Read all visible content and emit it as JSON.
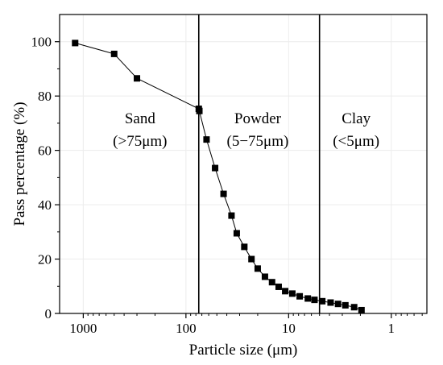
{
  "chart_data": {
    "type": "scatter",
    "xscale": "log",
    "x_reversed": true,
    "xlabel": "Particle size (μm)",
    "ylabel": "Pass percentage (%)",
    "xlim": [
      1700,
      0.45
    ],
    "ylim": [
      0,
      110
    ],
    "x_ticks": [
      {
        "value": 1000,
        "label": "1000"
      },
      {
        "value": 100,
        "label": "100"
      },
      {
        "value": 10,
        "label": "10"
      },
      {
        "value": 1,
        "label": "1"
      }
    ],
    "y_ticks": [
      {
        "value": 0,
        "label": "0"
      },
      {
        "value": 20,
        "label": "20"
      },
      {
        "value": 40,
        "label": "40"
      },
      {
        "value": 60,
        "label": "60"
      },
      {
        "value": 80,
        "label": "80"
      },
      {
        "value": 100,
        "label": "100"
      }
    ],
    "grid": true,
    "line_connected": true,
    "marker": "square",
    "series_color": "#000000",
    "dividers": [
      75,
      5
    ],
    "regions": [
      {
        "label": "Sand",
        "sublabel": "(>75μm)",
        "x": 280
      },
      {
        "label": "Powder",
        "sublabel": "(5−75μm)",
        "x": 20
      },
      {
        "label": "Clay",
        "sublabel": "(<5μm)",
        "x": 2.2
      }
    ],
    "points": [
      {
        "x": 1200,
        "y": 99.5
      },
      {
        "x": 500,
        "y": 95.5
      },
      {
        "x": 300,
        "y": 86.5
      },
      {
        "x": 75,
        "y": 75.3
      },
      {
        "x": 74,
        "y": 74.5
      },
      {
        "x": 63,
        "y": 64
      },
      {
        "x": 52,
        "y": 53.5
      },
      {
        "x": 43,
        "y": 44
      },
      {
        "x": 36,
        "y": 36
      },
      {
        "x": 32,
        "y": 29.5
      },
      {
        "x": 27,
        "y": 24.5
      },
      {
        "x": 23,
        "y": 20
      },
      {
        "x": 20,
        "y": 16.5
      },
      {
        "x": 17,
        "y": 13.5
      },
      {
        "x": 14.5,
        "y": 11.5
      },
      {
        "x": 12.5,
        "y": 9.8
      },
      {
        "x": 10.8,
        "y": 8.2
      },
      {
        "x": 9.2,
        "y": 7.3
      },
      {
        "x": 7.8,
        "y": 6.3
      },
      {
        "x": 6.5,
        "y": 5.5
      },
      {
        "x": 5.6,
        "y": 5.0
      },
      {
        "x": 4.7,
        "y": 4.5
      },
      {
        "x": 3.9,
        "y": 4.0
      },
      {
        "x": 3.3,
        "y": 3.5
      },
      {
        "x": 2.8,
        "y": 3.0
      },
      {
        "x": 2.3,
        "y": 2.3
      },
      {
        "x": 1.95,
        "y": 1.2
      }
    ]
  }
}
